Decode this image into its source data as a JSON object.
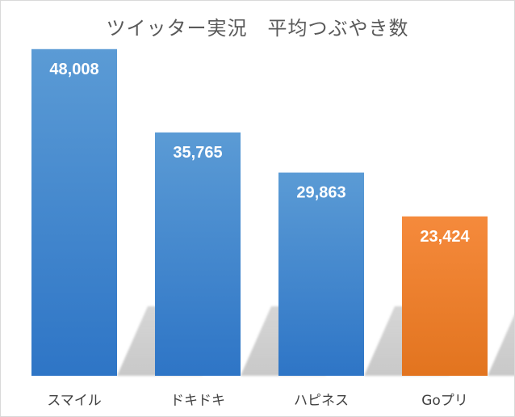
{
  "chart_data": {
    "type": "bar",
    "title": "ツイッター実況　平均つぶやき数",
    "categories": [
      "スマイル",
      "ドキドキ",
      "ハピネス",
      "Goプリ"
    ],
    "values": [
      48008,
      35765,
      29863,
      23424
    ],
    "value_labels": [
      "48,008",
      "35,765",
      "29,863",
      "23,424"
    ],
    "ylim": [
      0,
      50000
    ],
    "grid": false,
    "legend": "none",
    "colors": {
      "default_bar_top": "#5b9bd5",
      "default_bar_bottom": "#2e75c6",
      "highlight_bar_top": "#f58a3c",
      "highlight_bar_bottom": "#e2741f",
      "label_text": "#ffffff",
      "category_text": "#404040",
      "title_text": "#595959",
      "shadow": "#cfcfcf"
    },
    "highlight_index": 3
  }
}
